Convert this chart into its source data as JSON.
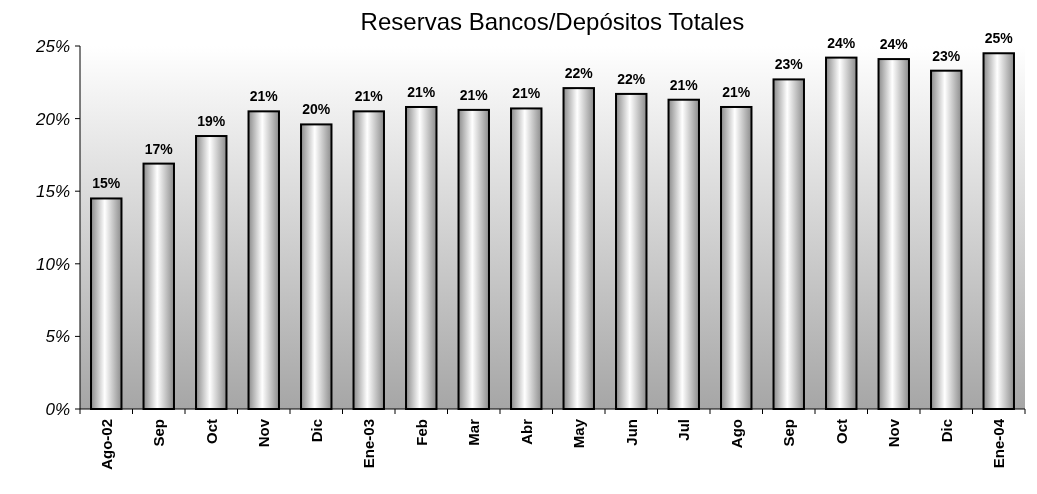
{
  "chart_data": {
    "type": "bar",
    "title": "Reservas Bancos/Depósitos Totales",
    "categories": [
      "Ago-02",
      "Sep",
      "Oct",
      "Nov",
      "Dic",
      "Ene-03",
      "Feb",
      "Mar",
      "Abr",
      "May",
      "Jun",
      "Jul",
      "Ago",
      "Sep",
      "Oct",
      "Nov",
      "Dic",
      "Ene-04"
    ],
    "values": [
      14.5,
      16.9,
      18.8,
      20.5,
      19.6,
      20.5,
      20.8,
      20.6,
      20.7,
      22.1,
      21.7,
      21.3,
      20.8,
      22.7,
      24.2,
      24.1,
      23.3,
      24.5
    ],
    "value_labels": [
      "15%",
      "17%",
      "19%",
      "21%",
      "20%",
      "21%",
      "21%",
      "21%",
      "21%",
      "22%",
      "22%",
      "21%",
      "21%",
      "23%",
      "24%",
      "24%",
      "23%",
      "25%"
    ],
    "color": "#000000",
    "ylim": [
      0,
      25
    ],
    "yticks": [
      {
        "value": 0,
        "label": "0%"
      },
      {
        "value": 5,
        "label": "5%"
      },
      {
        "value": 10,
        "label": "10%"
      },
      {
        "value": 15,
        "label": "15%"
      },
      {
        "value": 20,
        "label": "20%"
      },
      {
        "value": 25,
        "label": "25%"
      }
    ],
    "grid": false
  }
}
